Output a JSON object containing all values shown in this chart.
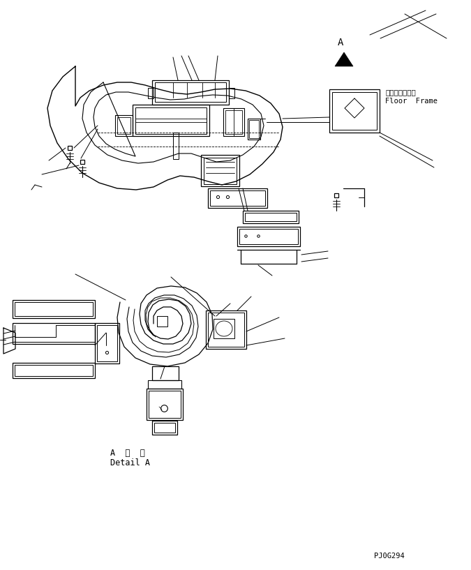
{
  "bg_color": "#ffffff",
  "line_color": "#000000",
  "part_number": "PJ0G294",
  "label_floor_frame_jp": "フロアフレーム",
  "label_floor_frame_en": "Floor  Frame",
  "label_detail_jp": "A  詳  細",
  "label_detail_en": "Detail A",
  "label_A": "A"
}
